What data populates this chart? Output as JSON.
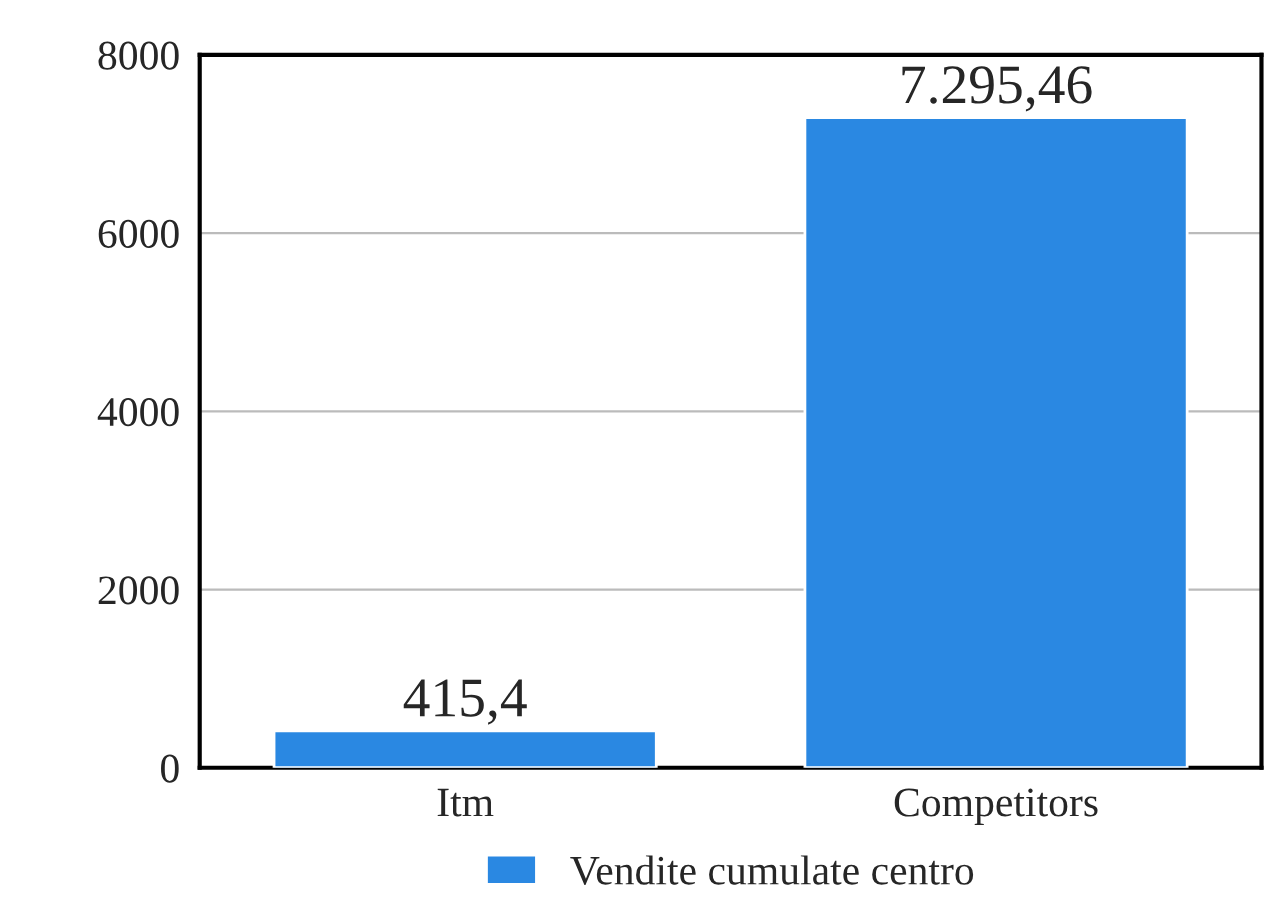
{
  "chart_data": {
    "type": "bar",
    "categories": [
      "Itm",
      "Competitors"
    ],
    "series": [
      {
        "name": "Vendite cumulate centro",
        "color": "#2a88e2",
        "values": [
          415.4,
          7295.46
        ]
      }
    ],
    "value_labels": [
      "415,4",
      "7.295,46"
    ],
    "ylim": [
      0,
      8000
    ],
    "yticks": [
      0,
      2000,
      4000,
      6000,
      8000
    ],
    "grid": "y",
    "legend": "bottom"
  }
}
